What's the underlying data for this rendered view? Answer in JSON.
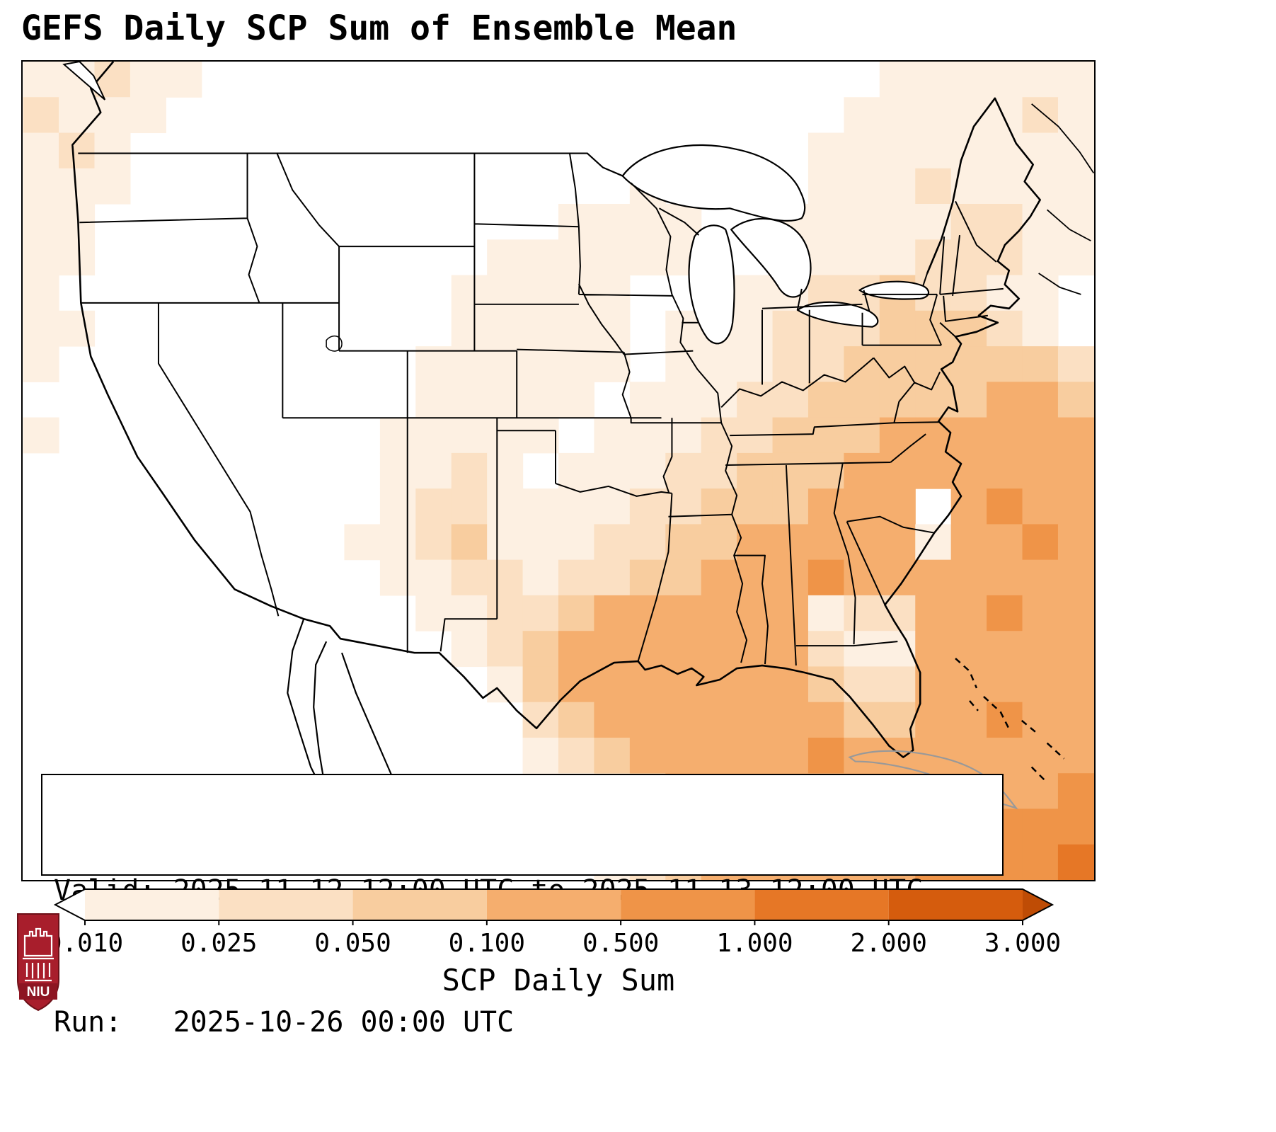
{
  "title": "GEFS Daily SCP Sum of Ensemble Mean",
  "info_box": {
    "valid": "Valid: 2025-11-12 12:00 UTC to 2025-11-13 12:00 UTC",
    "run": "Run:   2025-10-26 00:00 UTC"
  },
  "colorbar": {
    "label": "SCP Daily Sum",
    "ticks": [
      "0.010",
      "0.025",
      "0.050",
      "0.100",
      "0.500",
      "1.000",
      "2.000",
      "3.000"
    ],
    "segment_colors": [
      "#fdf0e2",
      "#fbe0c3",
      "#f8cd9f",
      "#f5ae6e",
      "#ef9448",
      "#e67726",
      "#d55c0d"
    ],
    "under_color": "#ffffff",
    "over_color": "#bf4c05"
  },
  "logo": {
    "text": "NIU",
    "shield_color": "#a81e2c",
    "band_color": "#8d1522"
  },
  "chart_data": {
    "type": "heatmap",
    "title": "GEFS Daily SCP Sum of Ensemble Mean",
    "variable": "SCP Daily Sum",
    "region": "Continental United States and adjacent waters",
    "valid": "2025-11-12 12:00 UTC to 2025-11-13 12:00 UTC",
    "run": "2025-10-26 00:00 UTC",
    "scale_values": [
      0.01,
      0.025,
      0.05,
      0.1,
      0.5,
      1.0,
      2.0,
      3.0
    ],
    "intensity_levels": [
      "<0.010",
      "0.010-0.025",
      "0.025-0.050",
      "0.050-0.100",
      "0.100-0.500",
      "0.500-1.000",
      "1.000-2.000",
      "2.000-3.000"
    ],
    "palette": [
      "#ffffff",
      "#fdf0e2",
      "#fbe0c3",
      "#f8cd9f",
      "#f5ae6e",
      "#ef9448",
      "#e67726",
      "#d55c0d"
    ],
    "grid_cols": 30,
    "grid_rows": 23,
    "intensity_rows": [
      "112110000000000000000000111111",
      "211100000000000000000001111121",
      "121000000000000000000011111111",
      "111000000000000001000011121111",
      "110000000000000111100111112211",
      "110000000000011111100111122211",
      "100000000000111110011122322 11",
      "110000000000111110111 22233321",
      "100000000001111110111223333332",
      "000000000001111101112233333443",
      "100000000011111011122333444444",
      "000000000011210111223334444444",
      "000000000012211112233344404544",
      "000000000112311122334444414454",
      "000000000011221223344454444444",
      "000000000001122344444412244544",
      "000000000000123444444421144444",
      "000000000000013444444432244444",
      "000000000000002344444443344544",
      "000000000000001234444454444444",
      "000000000000000123444444444445",
      "000000000000000123444444444555",
      "000000000000000012344444455556"
    ]
  }
}
